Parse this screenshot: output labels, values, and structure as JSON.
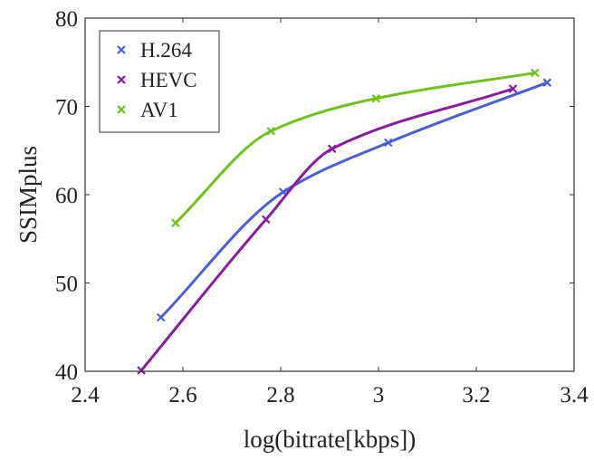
{
  "chart_data": {
    "type": "line",
    "xlabel": "log(bitrate[kbps])",
    "ylabel": "SSIMplus",
    "xlim": [
      2.4,
      3.4
    ],
    "ylim": [
      40,
      80
    ],
    "xticks": [
      "2.4",
      "2.6",
      "2.8",
      "3",
      "3.2",
      "3.4"
    ],
    "yticks": [
      "40",
      "50",
      "60",
      "70",
      "80"
    ],
    "grid": false,
    "legend_position": "top-left",
    "series": [
      {
        "name": "H.264",
        "color": "#4a5fd6",
        "x": [
          2.555,
          2.805,
          3.02,
          3.345
        ],
        "y": [
          46.1,
          60.3,
          65.9,
          72.7
        ]
      },
      {
        "name": "HEVC",
        "color": "#8a1aa0",
        "x": [
          2.515,
          2.77,
          2.905,
          3.275
        ],
        "y": [
          40.1,
          57.2,
          65.2,
          72.0
        ]
      },
      {
        "name": "AV1",
        "color": "#6ec21a",
        "x": [
          2.585,
          2.78,
          2.995,
          3.32
        ],
        "y": [
          56.8,
          67.2,
          70.9,
          73.8
        ]
      }
    ]
  }
}
